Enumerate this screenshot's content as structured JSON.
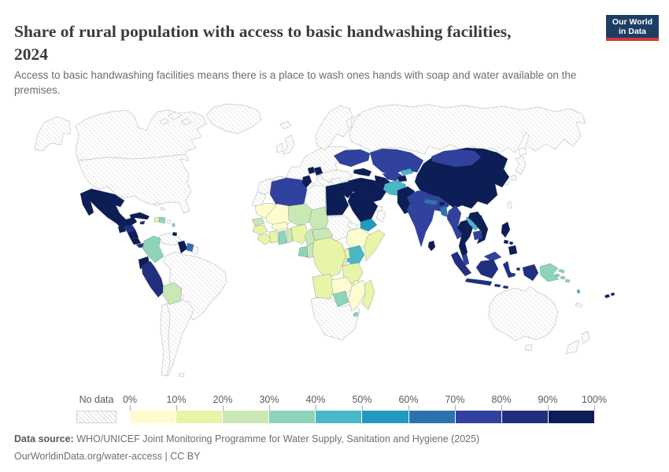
{
  "header": {
    "title_line1": "Share of rural population with access to basic handwashing facilities,",
    "title_line2": "2024",
    "subtitle_line1": "Access to basic handwashing facilities means there is a place to wash ones hands with soap and water available on the",
    "subtitle_line2": "premises."
  },
  "logo": {
    "line1": "Our World",
    "line2": "in Data",
    "bg_color": "#1d3d63",
    "accent_color": "#d0393a"
  },
  "legend": {
    "no_data_label": "No data",
    "ticks": [
      "0%",
      "10%",
      "20%",
      "30%",
      "40%",
      "50%",
      "60%",
      "70%",
      "80%",
      "90%",
      "100%"
    ]
  },
  "footer": {
    "source_label": "Data source:",
    "source_text": " WHO/UNICEF Joint Monitoring Programme for Water Supply, Sanitation and Hygiene (2025)",
    "link_text": "OurWorldinData.org/water-access | CC BY"
  },
  "chart_data": {
    "type": "choropleth_map",
    "title": "Share of rural population with access to basic handwashing facilities, 2024",
    "unit": "% of rural population",
    "legend_ticks": [
      "0%",
      "10%",
      "20%",
      "30%",
      "40%",
      "50%",
      "60%",
      "70%",
      "80%",
      "90%",
      "100%"
    ],
    "bin_labels": [
      "0-10%",
      "10-20%",
      "20-30%",
      "30-40%",
      "40-50%",
      "50-60%",
      "60-70%",
      "70-80%",
      "80-90%",
      "90-100%"
    ],
    "bin_colors": [
      "#fcfcce",
      "#e8f4a8",
      "#c9e8b4",
      "#8ed4b8",
      "#49b7c6",
      "#2398c1",
      "#2d72b0",
      "#30419e",
      "#20307f",
      "#0d1d55"
    ],
    "no_data": {
      "label": "No data",
      "style": "diagonal-hatch"
    },
    "value_encoding": "bin index into bin_labels; 0 = no data",
    "countries": {
      "canada": 0,
      "united-states": 0,
      "greenland": 0,
      "arctic-islands": 0,
      "bahamas": 0,
      "puerto-rico": 0,
      "mexico": 10,
      "guatemala": 10,
      "honduras": 9,
      "nicaragua": 10,
      "costa-rica": 10,
      "panama": 9,
      "cuba": 10,
      "jamaica": 9,
      "haiti": 2,
      "dominican-republic": 4,
      "lesser-antilles": 4,
      "trinidad-and-tobago": 10,
      "venezuela": 0,
      "colombia": 4,
      "ecuador": 10,
      "peru": 9,
      "bolivia": 3,
      "guyana": 10,
      "suriname": 7,
      "french-guiana": 0,
      "brazil": 0,
      "chile": 0,
      "argentina": 0,
      "falkland-islands": 0,
      "iceland": 0,
      "united-kingdom": 0,
      "ireland": 0,
      "iberia": 0,
      "europe": 0,
      "italy": 0,
      "greece": 0,
      "scandinavia": 0,
      "finland": 0,
      "russia": 0,
      "ukraine": 8,
      "serbia": 10,
      "bosnia": 10,
      "turkey": 0,
      "georgia-azerbaijan": 10,
      "syria": 0,
      "jordan": 0,
      "iraq": 10,
      "iran": 10,
      "saudi-arabia": 10,
      "yemen": 6,
      "oman": 0,
      "uae-qatar": 0,
      "morocco": 0,
      "western-sahara": 0,
      "algeria": 8,
      "tunisia": 10,
      "libya": 0,
      "egypt": 10,
      "mauritania": 1,
      "mali": 1,
      "senegal": 3,
      "guinea": 2,
      "sierra-leone-liberia": 2,
      "ivory-coast": 2,
      "ghana": 4,
      "togo-benin": 3,
      "burkina-faso": 1,
      "niger": 3,
      "nigeria": 2,
      "chad": 3,
      "sudan": 0,
      "eritrea": 0,
      "ethiopia": 1,
      "somalia": 2,
      "kenya": 5,
      "uganda": 2,
      "rwanda-burundi": 2,
      "cameroon": 3,
      "central-african-republic": 3,
      "gabon": 4,
      "congo": 3,
      "democratic-republic-of-congo": 2,
      "tanzania": 2,
      "angola": 2,
      "zambia": 1,
      "malawi": 1,
      "mozambique": 1,
      "zimbabwe": 4,
      "southern-africa": 0,
      "eswatini": 4,
      "madagascar": 2,
      "kazakhstan": 8,
      "uzbekistan": 8,
      "turkmenistan": 10,
      "kyrgyzstan": 5,
      "tajikistan": 10,
      "afghanistan": 5,
      "pakistan": 10,
      "india": 8,
      "nepal": 7,
      "bhutan": 10,
      "bangladesh": 7,
      "sri-lanka": 10,
      "china": 10,
      "mongolia": 8,
      "north-korea": 0,
      "south-korea": 0,
      "japan": 0,
      "taiwan": 0,
      "myanmar": 8,
      "laos": 5,
      "thailand": 10,
      "vietnam": 10,
      "cambodia": 8,
      "malaysia": 8,
      "indonesia": 9,
      "philippines": 10,
      "papua-new-guinea": 4,
      "solomon-islands": 4,
      "vanuatu": 5,
      "fiji": 10,
      "new-caledonia": 0,
      "australia": 0,
      "new-zealand": 0
    }
  }
}
